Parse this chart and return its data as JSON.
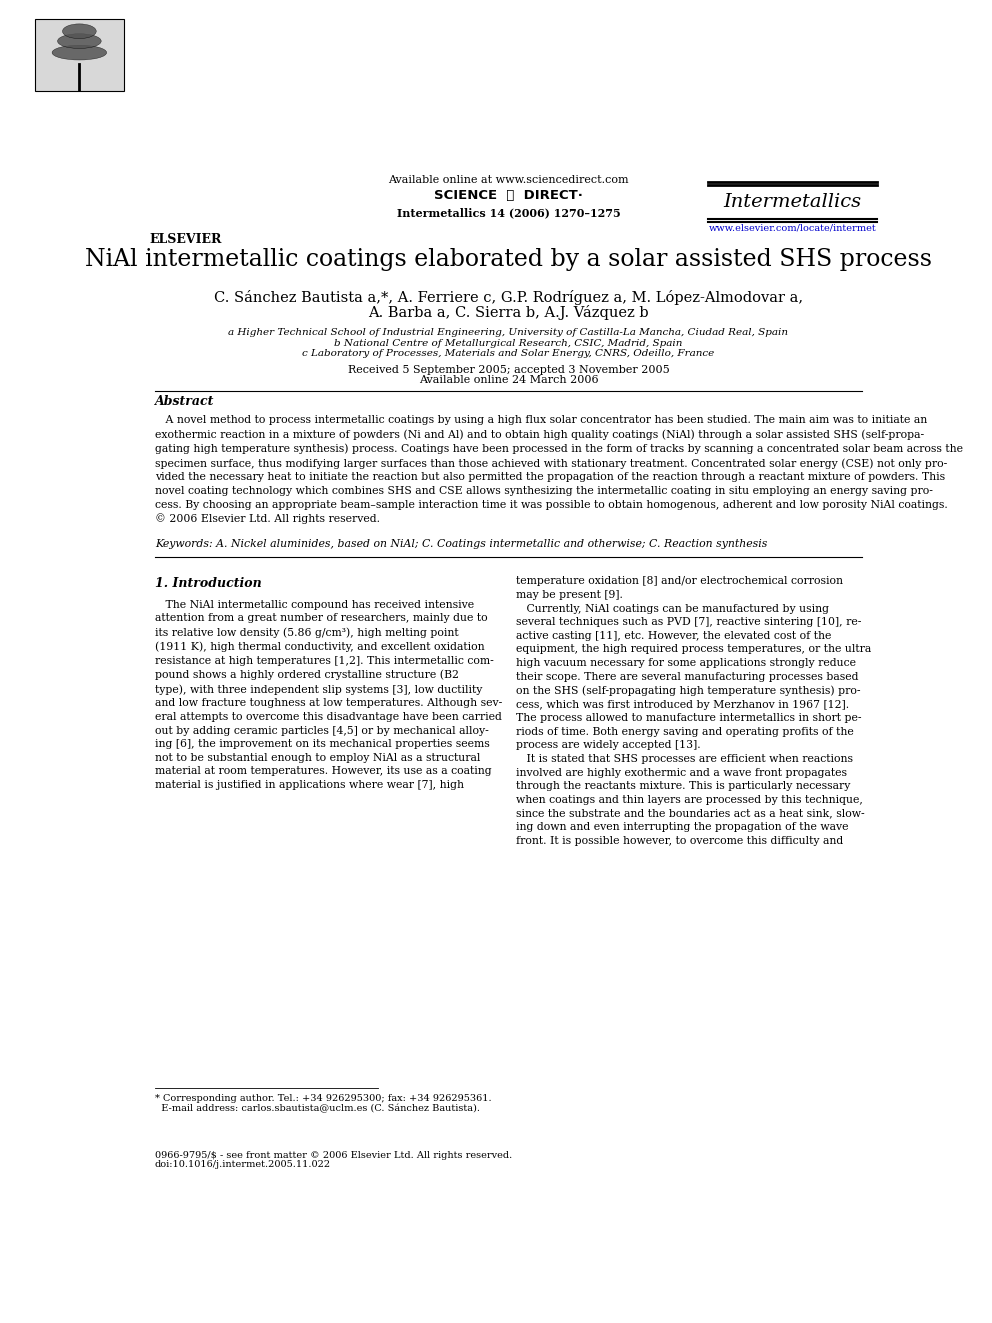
{
  "title": "NiAl intermetallic coatings elaborated by a solar assisted SHS process",
  "journal_name": "Intermetallics",
  "journal_ref": "Intermetallics 14 (2006) 1270–1275",
  "available_online_header": "Available online at www.sciencedirect.com",
  "journal_url": "www.elsevier.com/locate/intermet",
  "authors_line1": "C. Sánchez Bautista a,*, A. Ferriere c, G.P. Rodríguez a, M. López-Almodovar a,",
  "authors_line2": "A. Barba a, C. Sierra b, A.J. Vázquez b",
  "affil_a": "a Higher Technical School of Industrial Engineering, University of Castilla-La Mancha, Ciudad Real, Spain",
  "affil_b": "b National Centre of Metallurgical Research, CSIC, Madrid, Spain",
  "affil_c": "c Laboratory of Processes, Materials and Solar Energy, CNRS, Odeillo, France",
  "received": "Received 5 September 2005; accepted 3 November 2005",
  "available_online": "Available online 24 March 2006",
  "abstract_title": "Abstract",
  "abstract_wrapped": "   A novel method to process intermetallic coatings by using a high flux solar concentrator has been studied. The main aim was to initiate an\nexothermic reaction in a mixture of powders (Ni and Al) and to obtain high quality coatings (NiAl) through a solar assisted SHS (self-propa-\ngating high temperature synthesis) process. Coatings have been processed in the form of tracks by scanning a concentrated solar beam across the\nspecimen surface, thus modifying larger surfaces than those achieved with stationary treatment. Concentrated solar energy (CSE) not only pro-\nvided the necessary heat to initiate the reaction but also permitted the propagation of the reaction through a reactant mixture of powders. This\nnovel coating technology which combines SHS and CSE allows synthesizing the intermetallic coating in situ employing an energy saving pro-\ncess. By choosing an appropriate beam–sample interaction time it was possible to obtain homogenous, adherent and low porosity NiAl coatings.\n© 2006 Elsevier Ltd. All rights reserved.",
  "keywords": "Keywords: A. Nickel aluminides, based on NiAl; C. Coatings intermetallic and otherwise; C. Reaction synthesis",
  "section1_title": "1. Introduction",
  "col1_text": "   The NiAl intermetallic compound has received intensive\nattention from a great number of researchers, mainly due to\nits relative low density (5.86 g/cm³), high melting point\n(1911 K), high thermal conductivity, and excellent oxidation\nresistance at high temperatures [1,2]. This intermetallic com-\npound shows a highly ordered crystalline structure (B2\ntype), with three independent slip systems [3], low ductility\nand low fracture toughness at low temperatures. Although sev-\neral attempts to overcome this disadvantage have been carried\nout by adding ceramic particles [4,5] or by mechanical alloy-\ning [6], the improvement on its mechanical properties seems\nnot to be substantial enough to employ NiAl as a structural\nmaterial at room temperatures. However, its use as a coating\nmaterial is justified in applications where wear [7], high",
  "col2_text": "temperature oxidation [8] and/or electrochemical corrosion\nmay be present [9].\n   Currently, NiAl coatings can be manufactured by using\nseveral techniques such as PVD [7], reactive sintering [10], re-\nactive casting [11], etc. However, the elevated cost of the\nequipment, the high required process temperatures, or the ultra\nhigh vacuum necessary for some applications strongly reduce\ntheir scope. There are several manufacturing processes based\non the SHS (self-propagating high temperature synthesis) pro-\ncess, which was first introduced by Merzhanov in 1967 [12].\nThe process allowed to manufacture intermetallics in short pe-\nriods of time. Both energy saving and operating profits of the\nprocess are widely accepted [13].\n   It is stated that SHS processes are efficient when reactions\ninvolved are highly exothermic and a wave front propagates\nthrough the reactants mixture. This is particularly necessary\nwhen coatings and thin layers are processed by this technique,\nsince the substrate and the boundaries act as a heat sink, slow-\ning down and even interrupting the propagation of the wave\nfront. It is possible however, to overcome this difficulty and",
  "footnote_line1": "* Corresponding author. Tel.: +34 926295300; fax: +34 926295361.",
  "footnote_line2": "  E-mail address: carlos.sbautista@uclm.es (C. Sánchez Bautista).",
  "issn_line": "0966-9795/$ - see front matter © 2006 Elsevier Ltd. All rights reserved.",
  "doi_line": "doi:10.1016/j.intermet.2005.11.022",
  "bg_color": "#ffffff",
  "text_color": "#000000",
  "link_color": "#0000cc",
  "header_line_color": "#000000"
}
